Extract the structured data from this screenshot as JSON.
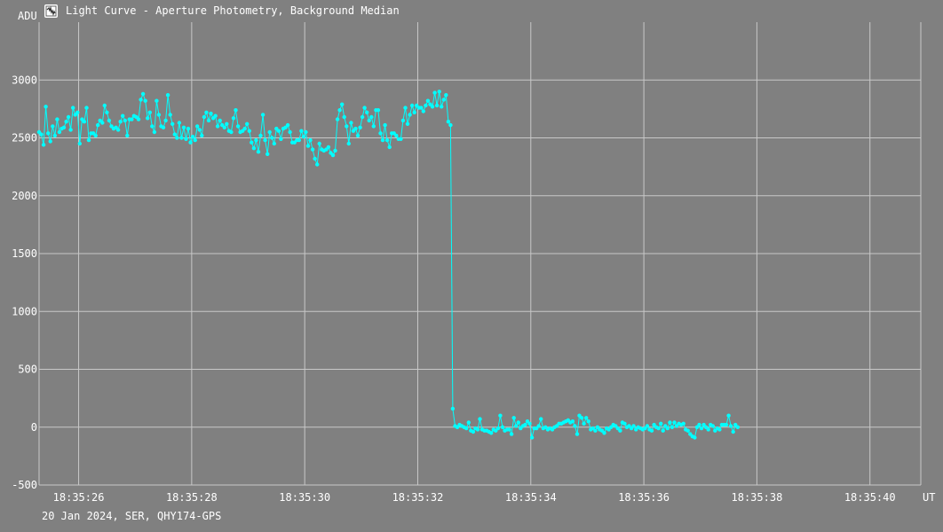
{
  "window": {
    "title": "Light Curve - Aperture Photometry, Background Median",
    "icon": "light-curve-app-icon"
  },
  "footer": {
    "caption": "20 Jan 2024, SER, QHY174-GPS"
  },
  "colors": {
    "background": "#808080",
    "grid": "#c8c8c8",
    "series": "#00ffff",
    "text": "#ffffff"
  },
  "chart_data": {
    "type": "line",
    "title": "Light Curve - Aperture Photometry, Background Median",
    "ylabel": "ADU",
    "xlabel": "UT",
    "ylim": [
      -500,
      3500
    ],
    "xlim": [
      "18:35:25.3",
      "18:35:40.9"
    ],
    "yticks": [
      -500,
      0,
      500,
      1000,
      1500,
      2000,
      2500,
      3000
    ],
    "xticks": [
      "18:35:26",
      "18:35:28",
      "18:35:30",
      "18:35:32",
      "18:35:34",
      "18:35:36",
      "18:35:38",
      "18:35:40"
    ],
    "grid": true,
    "markers": true,
    "series": [
      {
        "start": "18:35:25.30",
        "step_seconds": 0.04,
        "values": [
          2550,
          2530,
          2440,
          2770,
          2540,
          2470,
          2600,
          2520,
          2660,
          2550,
          2580,
          2590,
          2640,
          2680,
          2570,
          2760,
          2700,
          2720,
          2450,
          2660,
          2640,
          2760,
          2480,
          2540,
          2540,
          2520,
          2610,
          2650,
          2630,
          2780,
          2720,
          2650,
          2600,
          2580,
          2590,
          2570,
          2640,
          2690,
          2650,
          2520,
          2660,
          2660,
          2690,
          2680,
          2660,
          2830,
          2880,
          2820,
          2670,
          2720,
          2600,
          2550,
          2820,
          2700,
          2600,
          2590,
          2650,
          2870,
          2700,
          2620,
          2530,
          2500,
          2630,
          2500,
          2590,
          2490,
          2580,
          2460,
          2510,
          2480,
          2600,
          2570,
          2520,
          2680,
          2720,
          2650,
          2710,
          2670,
          2690,
          2600,
          2650,
          2610,
          2590,
          2620,
          2560,
          2550,
          2670,
          2740,
          2600,
          2550,
          2560,
          2580,
          2620,
          2560,
          2460,
          2410,
          2480,
          2380,
          2520,
          2700,
          2480,
          2360,
          2550,
          2500,
          2450,
          2580,
          2560,
          2490,
          2580,
          2590,
          2610,
          2550,
          2460,
          2460,
          2480,
          2480,
          2560,
          2510,
          2550,
          2430,
          2480,
          2400,
          2320,
          2270,
          2450,
          2400,
          2390,
          2400,
          2420,
          2370,
          2350,
          2390,
          2660,
          2740,
          2790,
          2680,
          2600,
          2450,
          2630,
          2560,
          2580,
          2520,
          2590,
          2680,
          2760,
          2720,
          2650,
          2680,
          2600,
          2740,
          2740,
          2540,
          2480,
          2610,
          2480,
          2420,
          2540,
          2540,
          2520,
          2490,
          2490,
          2650,
          2760,
          2620,
          2700,
          2780,
          2720,
          2780,
          2760,
          2760,
          2730,
          2780,
          2820,
          2790,
          2770,
          2890,
          2780,
          2900,
          2770,
          2830,
          2870,
          2640,
          2610,
          160,
          10,
          0,
          20,
          10,
          0,
          -10,
          40,
          -30,
          -40,
          -10,
          -20,
          70,
          -20,
          -30,
          -30,
          -40,
          -50,
          -20,
          -30,
          -10,
          100,
          0,
          -30,
          -20,
          -20,
          -60,
          80,
          10,
          40,
          -10,
          10,
          20,
          50,
          30,
          -90,
          -10,
          -10,
          10,
          70,
          -10,
          0,
          -20,
          -10,
          -20,
          0,
          10,
          30,
          30,
          40,
          50,
          60,
          40,
          50,
          10,
          -60,
          100,
          80,
          30,
          80,
          50,
          -20,
          -10,
          -30,
          0,
          -20,
          -30,
          -50,
          -10,
          -20,
          0,
          20,
          10,
          -10,
          -30,
          40,
          30,
          0,
          10,
          -10,
          10,
          -20,
          0,
          -10,
          -20,
          -10,
          10,
          -20,
          -30,
          20,
          0,
          -10,
          30,
          -30,
          10,
          -10,
          40,
          0,
          40,
          10,
          30,
          20,
          30,
          -20,
          -30,
          -60,
          -80,
          -90,
          0,
          20,
          -10,
          20,
          0,
          -20,
          20,
          10,
          -30,
          -10,
          -20,
          20,
          20,
          20,
          100,
          10,
          -40,
          20,
          0
        ]
      }
    ]
  }
}
